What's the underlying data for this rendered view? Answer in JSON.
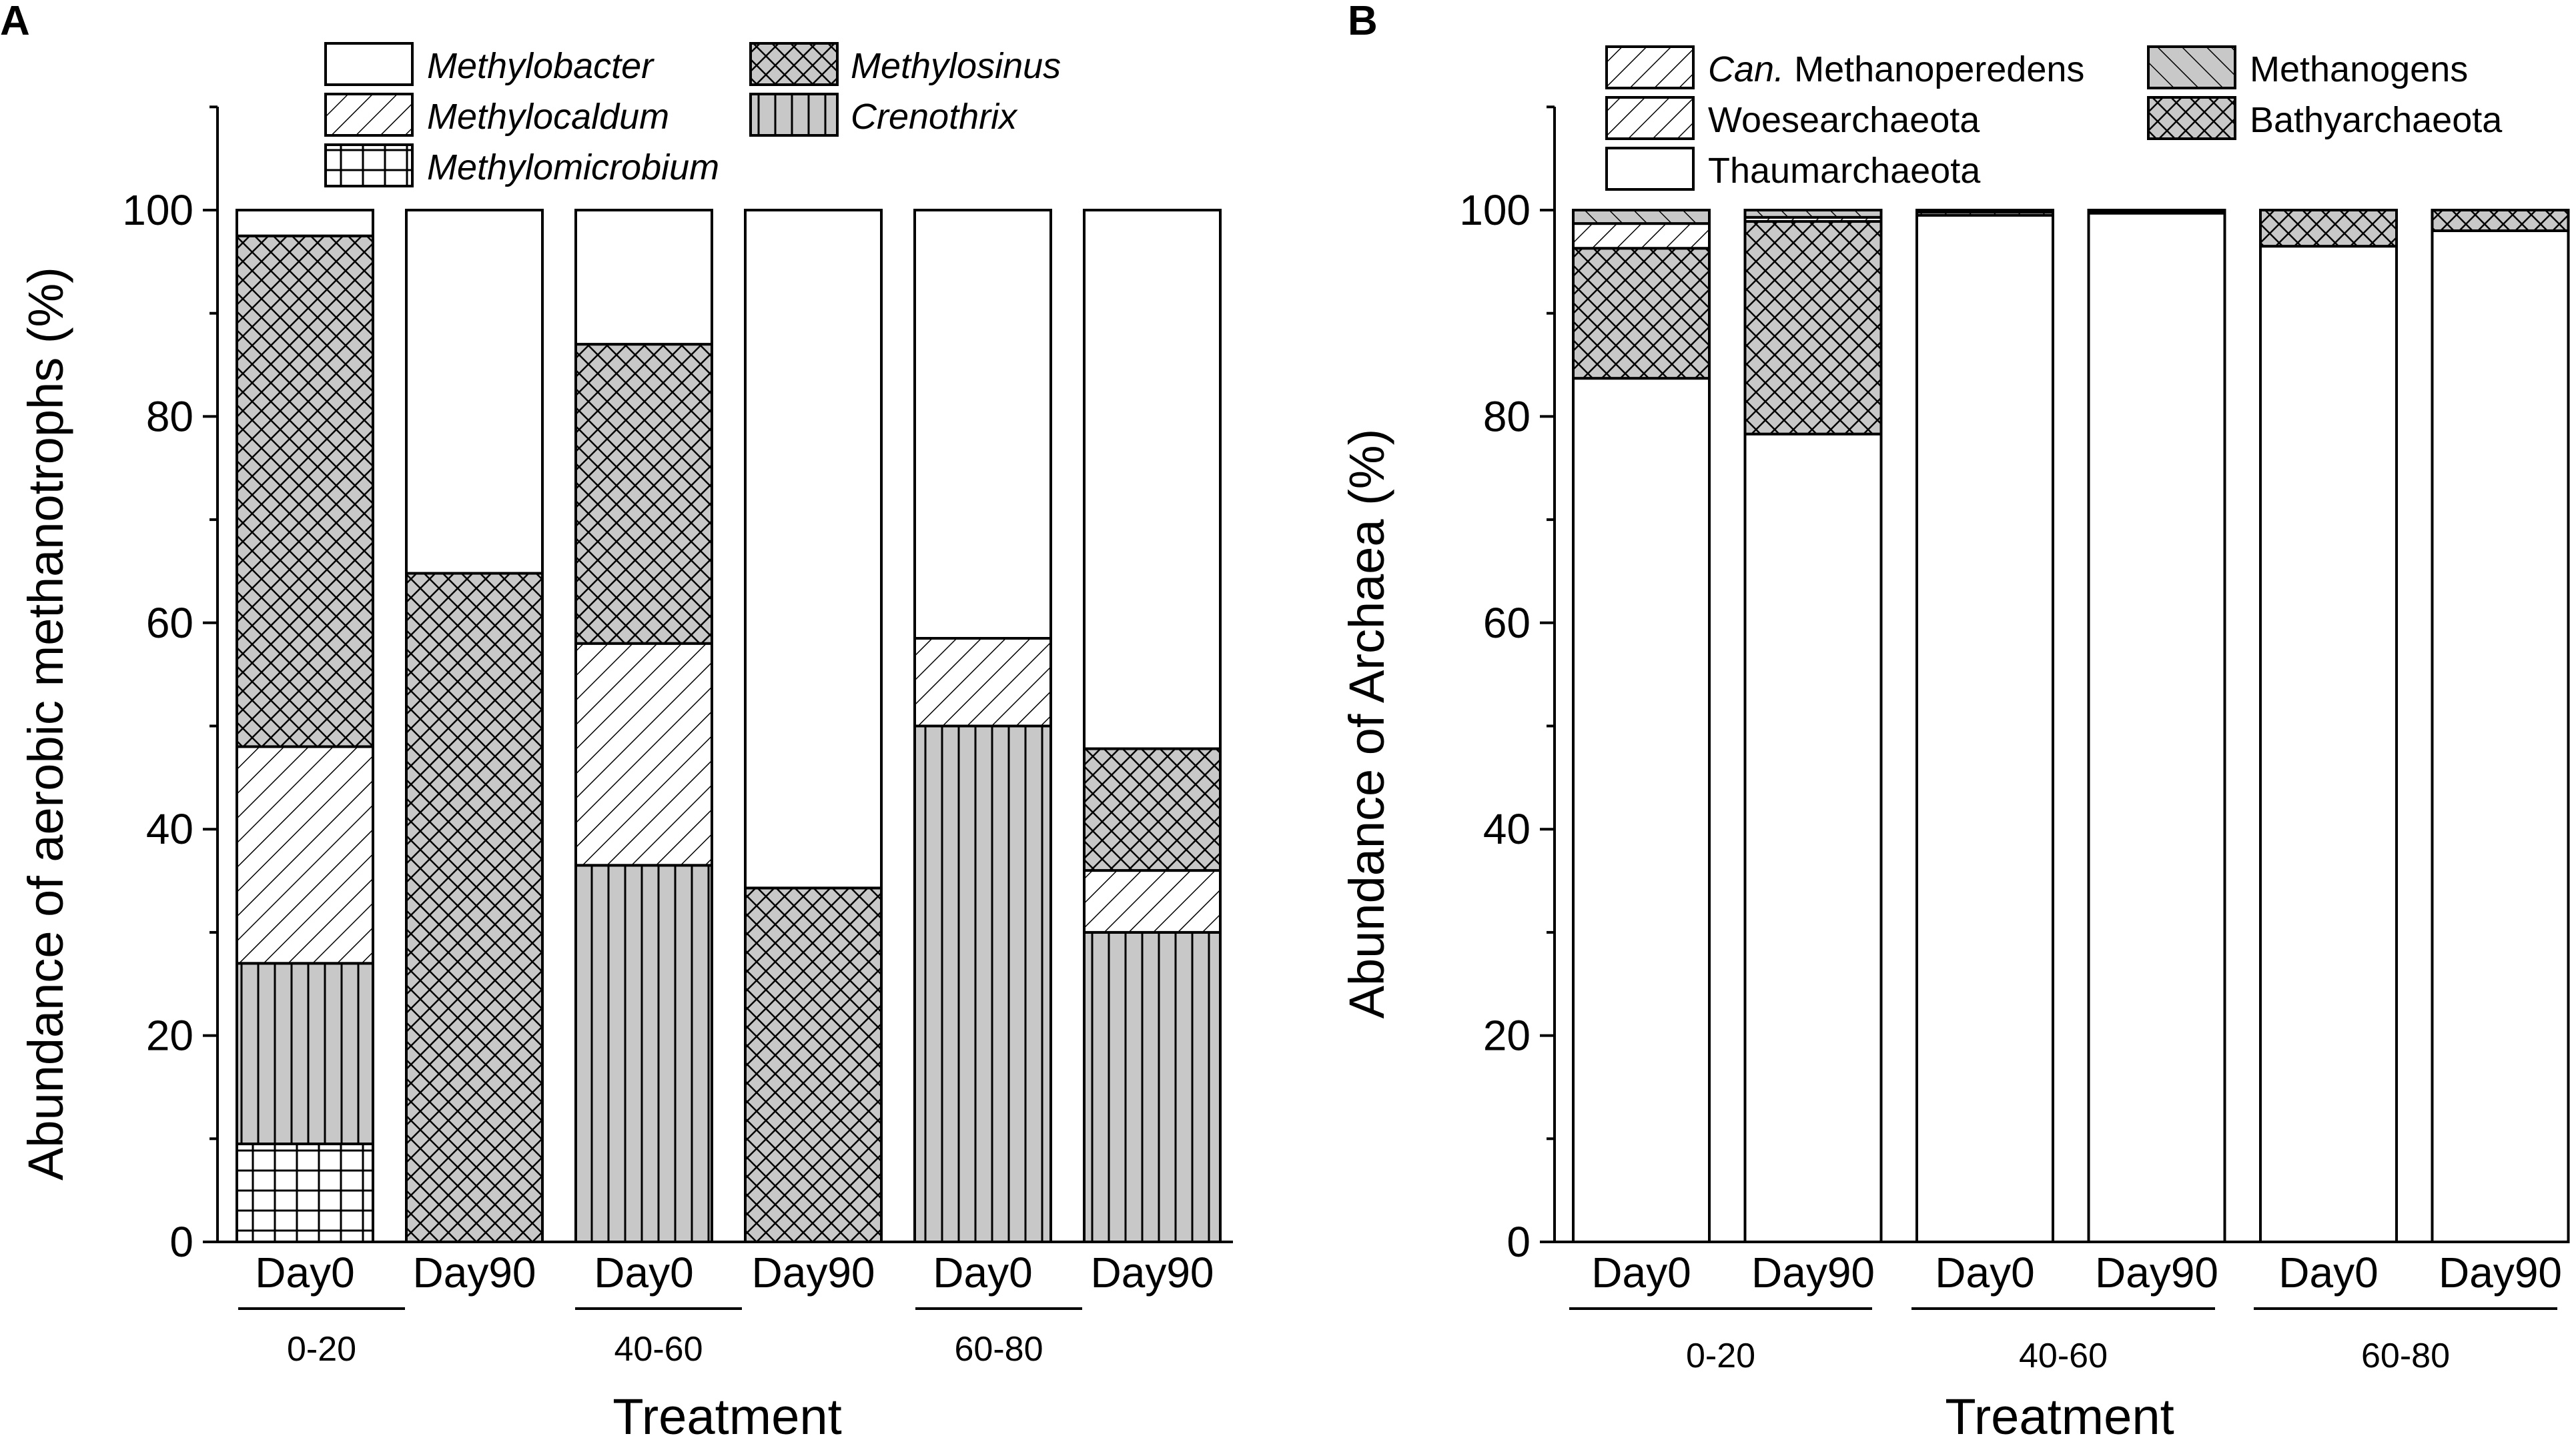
{
  "colors": {
    "background": "#ffffff",
    "stroke": "#000000",
    "gray_fill": "#c8c8c8"
  },
  "chart_data": [
    {
      "panel": "A",
      "type": "bar",
      "stacked": true,
      "title": "",
      "xlabel": "Treatment",
      "ylabel": "Abundance of aerobic methanotrophs (%)",
      "ylim": [
        0,
        110
      ],
      "yticks": [
        0,
        20,
        40,
        60,
        80,
        100
      ],
      "grid": false,
      "legend_position": "top",
      "categories": [
        "Day0",
        "Day90",
        "Day0",
        "Day90",
        "Day0",
        "Day90"
      ],
      "groups": [
        {
          "label": "0-20",
          "span": [
            0,
            1
          ]
        },
        {
          "label": "40-60",
          "span": [
            2,
            3
          ]
        },
        {
          "label": "60-80",
          "span": [
            4,
            5
          ]
        }
      ],
      "series": [
        {
          "name": "Methylomicrobium",
          "italic": true,
          "pattern": "grid",
          "values": [
            9.5,
            0,
            0,
            0,
            0,
            0
          ]
        },
        {
          "name": "Crenothrix",
          "italic": true,
          "pattern": "vlines",
          "values": [
            17.5,
            0,
            36.5,
            0,
            50,
            30
          ]
        },
        {
          "name": "Methylocaldum",
          "italic": true,
          "pattern": "diag",
          "values": [
            21,
            0,
            21.5,
            0,
            8.5,
            6
          ]
        },
        {
          "name": "Methylosinus",
          "italic": true,
          "pattern": "cross",
          "values": [
            49.5,
            64.8,
            29,
            34.3,
            0,
            11.8
          ]
        },
        {
          "name": "Methylobacter",
          "italic": true,
          "pattern": "white",
          "values": [
            2.5,
            35.2,
            13,
            65.7,
            41.5,
            52.2
          ]
        }
      ],
      "legend_order": [
        "Methylobacter",
        "Methylosinus",
        "Methylocaldum",
        "Crenothrix",
        "Methylomicrobium"
      ]
    },
    {
      "panel": "B",
      "type": "bar",
      "stacked": true,
      "title": "",
      "xlabel": "Treatment",
      "ylabel": "Abundance of Archaea (%)",
      "ylim": [
        0,
        110
      ],
      "yticks": [
        0,
        20,
        40,
        60,
        80,
        100
      ],
      "grid": false,
      "legend_position": "top",
      "categories": [
        "Day0",
        "Day90",
        "Day0",
        "Day90",
        "Day0",
        "Day90"
      ],
      "groups": [
        {
          "label": "0-20",
          "span": [
            0,
            1
          ]
        },
        {
          "label": "40-60",
          "span": [
            2,
            3
          ]
        },
        {
          "label": "60-80",
          "span": [
            4,
            5
          ]
        }
      ],
      "series": [
        {
          "name": "Thaumarchaeota",
          "pattern": "white",
          "values": [
            83.7,
            78.3,
            99.5,
            99.7,
            96.5,
            98
          ]
        },
        {
          "name": "Bathyarchaeota",
          "pattern": "cross",
          "values": [
            12.6,
            20.6,
            0,
            0,
            3.5,
            2
          ]
        },
        {
          "name": "Woesearchaeota",
          "pattern": "diag",
          "values": [
            2.4,
            0.4,
            0.3,
            0.2,
            0,
            0
          ]
        },
        {
          "name": "Methanogens",
          "pattern": "diag-gray",
          "values": [
            1.3,
            0.7,
            0.2,
            0.1,
            0,
            0
          ]
        },
        {
          "name": "Can. Methanoperedens",
          "name_prefix": "Can.",
          "name_rest": " Methanoperedens",
          "pattern": "diag",
          "values": [
            0,
            0,
            0,
            0,
            0,
            0
          ]
        }
      ],
      "legend_order": [
        "Can. Methanoperedens",
        "Methanogens",
        "Woesearchaeota",
        "Bathyarchaeota",
        "Thaumarchaeota"
      ]
    }
  ]
}
